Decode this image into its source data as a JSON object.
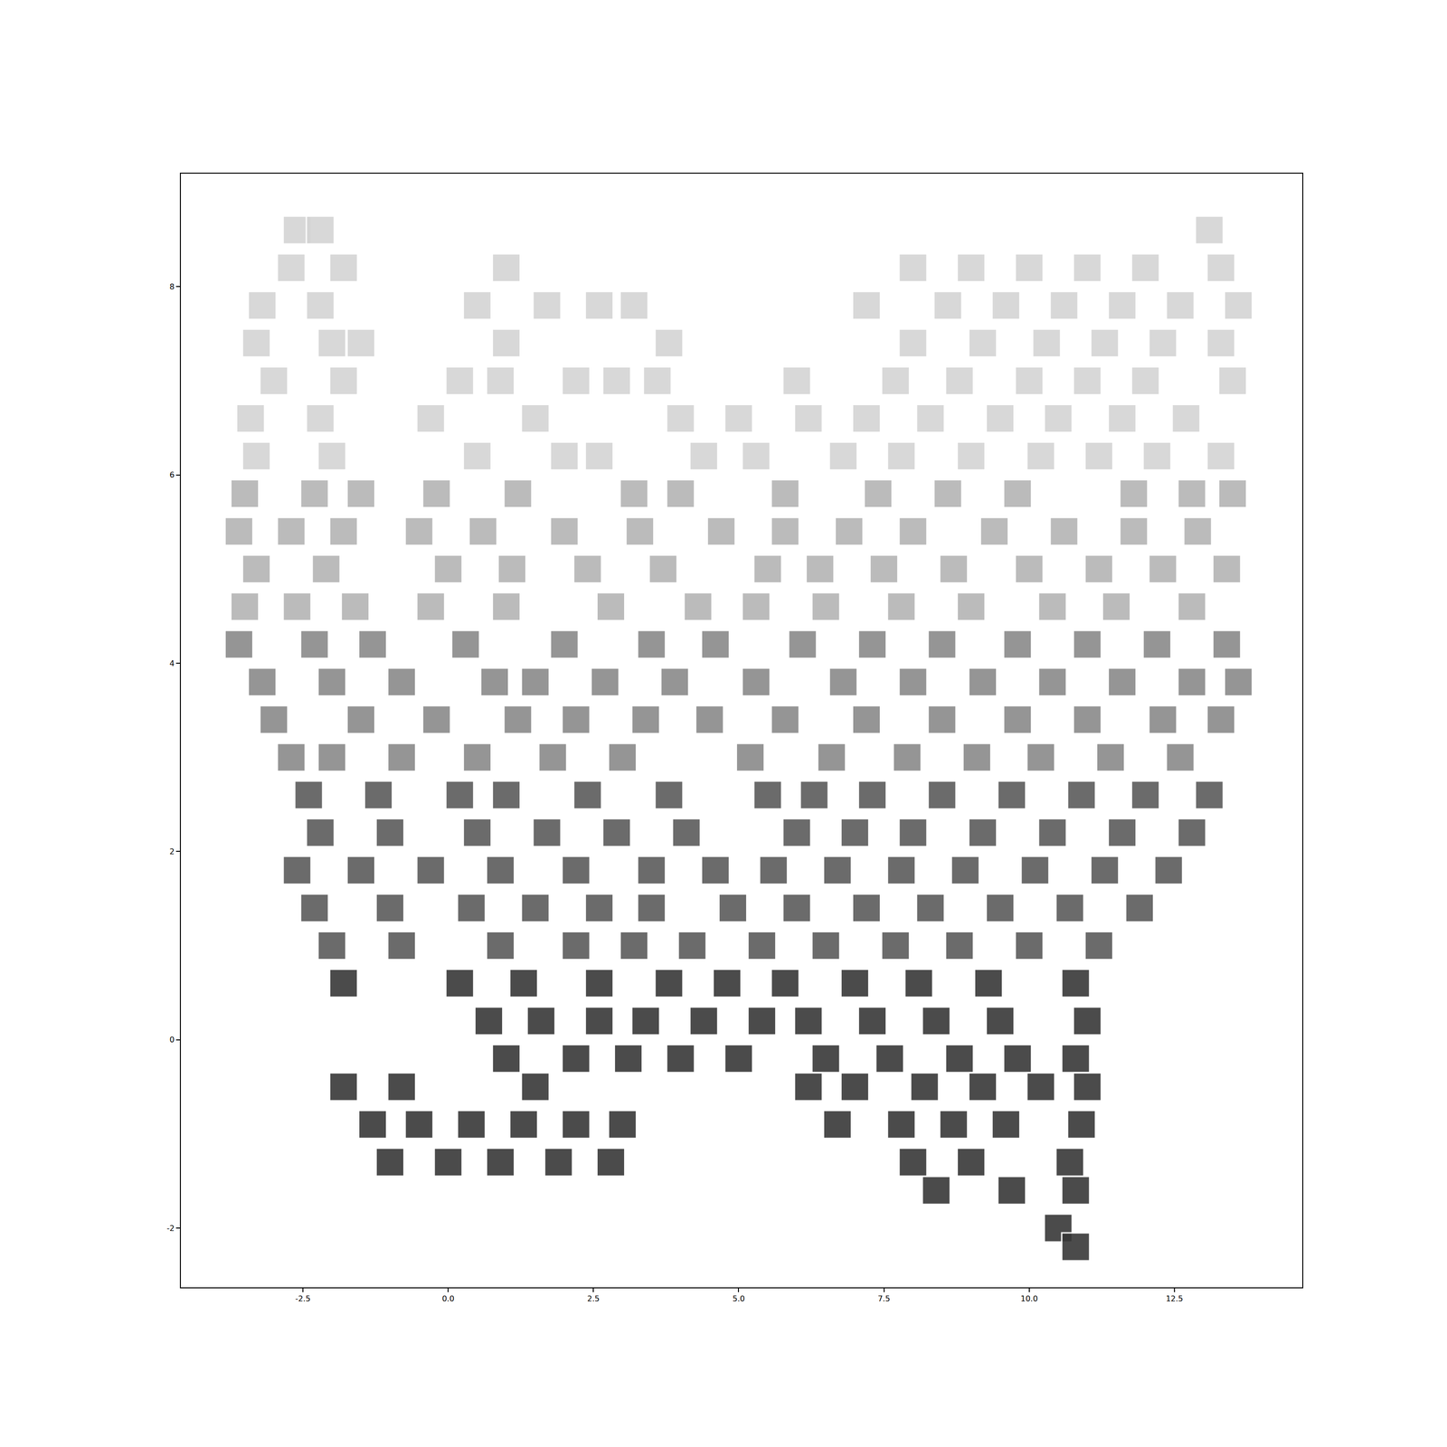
{
  "chart_data": {
    "type": "scatter",
    "marker": "square",
    "grid": false,
    "xlim": [
      -4.6,
      14.7
    ],
    "ylim": [
      -2.63,
      9.2
    ],
    "xticks": [
      -2.5,
      {
        "value": 0,
        "label": "0.0"
      },
      2.5,
      {
        "value": 5,
        "label": "5.0"
      },
      7.5,
      {
        "value": 10,
        "label": "10.0"
      },
      12.5
    ],
    "yticks": [
      -2,
      0,
      2,
      4,
      6,
      8
    ],
    "x": [
      -2.6,
      -2.2,
      13.1,
      -2.7,
      -1.8,
      1.0,
      8.0,
      9.0,
      10.0,
      11.0,
      12.0,
      13.3,
      -3.2,
      -2.2,
      0.5,
      1.7,
      2.6,
      3.2,
      7.2,
      8.6,
      9.6,
      10.6,
      11.6,
      12.6,
      13.6,
      -3.3,
      -2.0,
      -1.5,
      1.0,
      3.8,
      8.0,
      9.2,
      10.3,
      11.3,
      12.3,
      13.3,
      -3.0,
      -1.8,
      0.2,
      0.9,
      2.2,
      2.9,
      3.6,
      6.0,
      7.7,
      8.8,
      10.0,
      11.0,
      12.0,
      13.5,
      -3.4,
      -2.2,
      -0.3,
      1.5,
      4.0,
      5.0,
      6.2,
      7.2,
      8.3,
      9.5,
      10.5,
      11.6,
      12.7,
      -3.3,
      -2.0,
      0.5,
      2.0,
      2.6,
      4.4,
      5.3,
      6.8,
      7.8,
      9.0,
      10.2,
      11.2,
      12.2,
      13.3,
      -3.5,
      -2.3,
      -1.5,
      -0.2,
      1.2,
      3.2,
      4.0,
      5.8,
      7.4,
      8.6,
      9.8,
      11.8,
      12.8,
      13.5,
      -3.6,
      -2.7,
      -1.8,
      -0.5,
      0.6,
      2.0,
      3.3,
      4.7,
      5.8,
      6.9,
      8.0,
      9.4,
      10.6,
      11.8,
      12.9,
      -3.3,
      -2.1,
      0.0,
      1.1,
      2.4,
      3.7,
      5.5,
      6.4,
      7.5,
      8.7,
      10.0,
      11.2,
      12.3,
      13.4,
      -3.5,
      -2.6,
      -1.6,
      -0.3,
      1.0,
      2.8,
      4.3,
      5.3,
      6.5,
      7.8,
      9.0,
      10.4,
      11.5,
      12.8,
      -3.6,
      -2.3,
      -1.3,
      0.3,
      2.0,
      3.5,
      4.6,
      6.1,
      7.3,
      8.5,
      9.8,
      11.0,
      12.2,
      13.4,
      -3.2,
      -2.0,
      -0.8,
      0.8,
      1.5,
      2.7,
      3.9,
      5.3,
      6.8,
      8.0,
      9.2,
      10.4,
      11.6,
      12.8,
      13.6,
      -3.0,
      -1.5,
      -0.2,
      1.2,
      2.2,
      3.4,
      4.5,
      5.8,
      7.2,
      8.5,
      9.8,
      11.0,
      12.3,
      13.3,
      -2.7,
      -2.0,
      -0.8,
      0.5,
      1.8,
      3.0,
      5.2,
      6.6,
      7.9,
      9.1,
      10.2,
      11.4,
      12.6,
      -2.4,
      -1.2,
      0.2,
      1.0,
      2.4,
      3.8,
      5.5,
      6.3,
      7.3,
      8.5,
      9.7,
      10.9,
      12.0,
      13.1,
      -2.2,
      -1.0,
      0.5,
      1.7,
      2.9,
      4.1,
      6.0,
      7.0,
      8.0,
      9.2,
      10.4,
      11.6,
      12.8,
      -2.6,
      -1.5,
      -0.3,
      0.9,
      2.2,
      3.5,
      4.6,
      5.6,
      6.7,
      7.8,
      8.9,
      10.1,
      11.3,
      12.4,
      -2.3,
      -1.0,
      0.4,
      1.5,
      2.6,
      3.5,
      4.9,
      6.0,
      7.2,
      8.3,
      9.5,
      10.7,
      11.9,
      -2.0,
      -0.8,
      0.9,
      2.2,
      3.2,
      4.2,
      5.4,
      6.5,
      7.7,
      8.8,
      10.0,
      11.2,
      -1.8,
      0.2,
      1.3,
      2.6,
      3.8,
      4.8,
      5.8,
      7.0,
      8.1,
      9.3,
      10.8,
      0.7,
      1.6,
      2.6,
      3.4,
      4.4,
      5.4,
      6.2,
      7.3,
      8.4,
      9.5,
      11.0,
      1.0,
      2.2,
      3.1,
      4.0,
      5.0,
      6.5,
      7.6,
      8.8,
      9.8,
      10.8,
      -1.8,
      -0.8,
      1.5,
      6.2,
      7.0,
      8.2,
      9.2,
      10.2,
      11.0,
      -1.3,
      -0.5,
      0.4,
      1.3,
      2.2,
      3.0,
      6.7,
      7.8,
      8.7,
      9.6,
      10.9,
      -1.0,
      0.0,
      0.9,
      1.9,
      2.8,
      8.0,
      9.0,
      10.7,
      8.4,
      9.7,
      10.8,
      10.5,
      10.8
    ],
    "y": [
      8.6,
      8.6,
      8.6,
      8.2,
      8.2,
      8.2,
      8.2,
      8.2,
      8.2,
      8.2,
      8.2,
      8.2,
      7.8,
      7.8,
      7.8,
      7.8,
      7.8,
      7.8,
      7.8,
      7.8,
      7.8,
      7.8,
      7.8,
      7.8,
      7.8,
      7.4,
      7.4,
      7.4,
      7.4,
      7.4,
      7.4,
      7.4,
      7.4,
      7.4,
      7.4,
      7.4,
      7.0,
      7.0,
      7.0,
      7.0,
      7.0,
      7.0,
      7.0,
      7.0,
      7.0,
      7.0,
      7.0,
      7.0,
      7.0,
      7.0,
      6.6,
      6.6,
      6.6,
      6.6,
      6.6,
      6.6,
      6.6,
      6.6,
      6.6,
      6.6,
      6.6,
      6.6,
      6.6,
      6.2,
      6.2,
      6.2,
      6.2,
      6.2,
      6.2,
      6.2,
      6.2,
      6.2,
      6.2,
      6.2,
      6.2,
      6.2,
      6.2,
      5.8,
      5.8,
      5.8,
      5.8,
      5.8,
      5.8,
      5.8,
      5.8,
      5.8,
      5.8,
      5.8,
      5.8,
      5.8,
      5.8,
      5.4,
      5.4,
      5.4,
      5.4,
      5.4,
      5.4,
      5.4,
      5.4,
      5.4,
      5.4,
      5.4,
      5.4,
      5.4,
      5.4,
      5.4,
      5.0,
      5.0,
      5.0,
      5.0,
      5.0,
      5.0,
      5.0,
      5.0,
      5.0,
      5.0,
      5.0,
      5.0,
      5.0,
      5.0,
      4.6,
      4.6,
      4.6,
      4.6,
      4.6,
      4.6,
      4.6,
      4.6,
      4.6,
      4.6,
      4.6,
      4.6,
      4.6,
      4.6,
      4.2,
      4.2,
      4.2,
      4.2,
      4.2,
      4.2,
      4.2,
      4.2,
      4.2,
      4.2,
      4.2,
      4.2,
      4.2,
      4.2,
      3.8,
      3.8,
      3.8,
      3.8,
      3.8,
      3.8,
      3.8,
      3.8,
      3.8,
      3.8,
      3.8,
      3.8,
      3.8,
      3.8,
      3.8,
      3.4,
      3.4,
      3.4,
      3.4,
      3.4,
      3.4,
      3.4,
      3.4,
      3.4,
      3.4,
      3.4,
      3.4,
      3.4,
      3.4,
      3.0,
      3.0,
      3.0,
      3.0,
      3.0,
      3.0,
      3.0,
      3.0,
      3.0,
      3.0,
      3.0,
      3.0,
      3.0,
      2.6,
      2.6,
      2.6,
      2.6,
      2.6,
      2.6,
      2.6,
      2.6,
      2.6,
      2.6,
      2.6,
      2.6,
      2.6,
      2.6,
      2.2,
      2.2,
      2.2,
      2.2,
      2.2,
      2.2,
      2.2,
      2.2,
      2.2,
      2.2,
      2.2,
      2.2,
      2.2,
      1.8,
      1.8,
      1.8,
      1.8,
      1.8,
      1.8,
      1.8,
      1.8,
      1.8,
      1.8,
      1.8,
      1.8,
      1.8,
      1.8,
      1.4,
      1.4,
      1.4,
      1.4,
      1.4,
      1.4,
      1.4,
      1.4,
      1.4,
      1.4,
      1.4,
      1.4,
      1.4,
      1.0,
      1.0,
      1.0,
      1.0,
      1.0,
      1.0,
      1.0,
      1.0,
      1.0,
      1.0,
      1.0,
      1.0,
      0.6,
      0.6,
      0.6,
      0.6,
      0.6,
      0.6,
      0.6,
      0.6,
      0.6,
      0.6,
      0.6,
      0.2,
      0.2,
      0.2,
      0.2,
      0.2,
      0.2,
      0.2,
      0.2,
      0.2,
      0.2,
      0.2,
      -0.2,
      -0.2,
      -0.2,
      -0.2,
      -0.2,
      -0.2,
      -0.2,
      -0.2,
      -0.2,
      -0.2,
      -0.5,
      -0.5,
      -0.5,
      -0.5,
      -0.5,
      -0.5,
      -0.5,
      -0.5,
      -0.5,
      -0.9,
      -0.9,
      -0.9,
      -0.9,
      -0.9,
      -0.9,
      -0.9,
      -0.9,
      -0.9,
      -0.9,
      -0.9,
      -1.3,
      -1.3,
      -1.3,
      -1.3,
      -1.3,
      -1.3,
      -1.3,
      -1.3,
      -1.6,
      -1.6,
      -1.6,
      -2.0,
      -2.2
    ],
    "colors": [
      "#d4d4d4",
      "#d4d4d4",
      "#d4d4d4",
      "#d4d4d4",
      "#d4d4d4",
      "#d4d4d4",
      "#d4d4d4",
      "#d4d4d4",
      "#d4d4d4",
      "#d4d4d4",
      "#d4d4d4",
      "#d4d4d4",
      "#d4d4d4",
      "#d4d4d4",
      "#d4d4d4",
      "#d4d4d4",
      "#d4d4d4",
      "#d4d4d4",
      "#d4d4d4",
      "#d4d4d4",
      "#d4d4d4",
      "#d4d4d4",
      "#d4d4d4",
      "#d4d4d4",
      "#d4d4d4",
      "#d4d4d4",
      "#d4d4d4",
      "#d4d4d4",
      "#d4d4d4",
      "#d4d4d4",
      "#d4d4d4",
      "#d4d4d4",
      "#d4d4d4",
      "#d4d4d4",
      "#d4d4d4",
      "#d4d4d4",
      "#d4d4d4",
      "#d4d4d4",
      "#d4d4d4",
      "#d4d4d4",
      "#d4d4d4",
      "#d4d4d4",
      "#d4d4d4",
      "#d4d4d4",
      "#d4d4d4",
      "#d4d4d4",
      "#d4d4d4",
      "#d4d4d4",
      "#d4d4d4",
      "#d4d4d4",
      "#d4d4d4",
      "#d4d4d4",
      "#d4d4d4",
      "#d4d4d4",
      "#d4d4d4",
      "#d4d4d4",
      "#d4d4d4",
      "#d4d4d4",
      "#d4d4d4",
      "#d4d4d4",
      "#d4d4d4",
      "#d4d4d4",
      "#d4d4d4",
      "#d4d4d4",
      "#d4d4d4",
      "#d4d4d4",
      "#d4d4d4",
      "#d4d4d4",
      "#d4d4d4",
      "#d4d4d4",
      "#d4d4d4",
      "#d4d4d4",
      "#d4d4d4",
      "#d4d4d4",
      "#d4d4d4",
      "#d4d4d4",
      "#d4d4d4",
      "#b4b4b4",
      "#b4b4b4",
      "#b4b4b4",
      "#b4b4b4",
      "#b4b4b4",
      "#b4b4b4",
      "#b4b4b4",
      "#b4b4b4",
      "#b4b4b4",
      "#b4b4b4",
      "#b4b4b4",
      "#b4b4b4",
      "#b4b4b4",
      "#b4b4b4",
      "#b4b4b4",
      "#b4b4b4",
      "#b4b4b4",
      "#b4b4b4",
      "#b4b4b4",
      "#b4b4b4",
      "#b4b4b4",
      "#b4b4b4",
      "#b4b4b4",
      "#b4b4b4",
      "#b4b4b4",
      "#b4b4b4",
      "#b4b4b4",
      "#b4b4b4",
      "#b4b4b4",
      "#b4b4b4",
      "#b4b4b4",
      "#b4b4b4",
      "#b4b4b4",
      "#b4b4b4",
      "#b4b4b4",
      "#b4b4b4",
      "#b4b4b4",
      "#b4b4b4",
      "#b4b4b4",
      "#b4b4b4",
      "#b4b4b4",
      "#b4b4b4",
      "#b4b4b4",
      "#b4b4b4",
      "#b4b4b4",
      "#b4b4b4",
      "#b4b4b4",
      "#b4b4b4",
      "#b4b4b4",
      "#b4b4b4",
      "#b4b4b4",
      "#b4b4b4",
      "#b4b4b4",
      "#b4b4b4",
      "#b4b4b4",
      "#b4b4b4",
      "#b4b4b4",
      "#8a8a8a",
      "#8a8a8a",
      "#8a8a8a",
      "#8a8a8a",
      "#8a8a8a",
      "#8a8a8a",
      "#8a8a8a",
      "#8a8a8a",
      "#8a8a8a",
      "#8a8a8a",
      "#8a8a8a",
      "#8a8a8a",
      "#8a8a8a",
      "#8a8a8a",
      "#8a8a8a",
      "#8a8a8a",
      "#8a8a8a",
      "#8a8a8a",
      "#8a8a8a",
      "#8a8a8a",
      "#8a8a8a",
      "#8a8a8a",
      "#8a8a8a",
      "#8a8a8a",
      "#8a8a8a",
      "#8a8a8a",
      "#8a8a8a",
      "#8a8a8a",
      "#8a8a8a",
      "#8a8a8a",
      "#8a8a8a",
      "#8a8a8a",
      "#8a8a8a",
      "#8a8a8a",
      "#8a8a8a",
      "#8a8a8a",
      "#8a8a8a",
      "#8a8a8a",
      "#8a8a8a",
      "#8a8a8a",
      "#8a8a8a",
      "#8a8a8a",
      "#8a8a8a",
      "#8a8a8a",
      "#8a8a8a",
      "#8a8a8a",
      "#8a8a8a",
      "#8a8a8a",
      "#8a8a8a",
      "#8a8a8a",
      "#8a8a8a",
      "#8a8a8a",
      "#8a8a8a",
      "#8a8a8a",
      "#8a8a8a",
      "#8a8a8a",
      "#5c5c5c",
      "#5c5c5c",
      "#5c5c5c",
      "#5c5c5c",
      "#5c5c5c",
      "#5c5c5c",
      "#5c5c5c",
      "#5c5c5c",
      "#5c5c5c",
      "#5c5c5c",
      "#5c5c5c",
      "#5c5c5c",
      "#5c5c5c",
      "#5c5c5c",
      "#5c5c5c",
      "#5c5c5c",
      "#5c5c5c",
      "#5c5c5c",
      "#5c5c5c",
      "#5c5c5c",
      "#5c5c5c",
      "#5c5c5c",
      "#5c5c5c",
      "#5c5c5c",
      "#5c5c5c",
      "#5c5c5c",
      "#5c5c5c",
      "#5c5c5c",
      "#5c5c5c",
      "#5c5c5c",
      "#5c5c5c",
      "#5c5c5c",
      "#5c5c5c",
      "#5c5c5c",
      "#5c5c5c",
      "#5c5c5c",
      "#5c5c5c",
      "#5c5c5c",
      "#5c5c5c",
      "#5c5c5c",
      "#5c5c5c",
      "#5c5c5c",
      "#5c5c5c",
      "#5c5c5c",
      "#5c5c5c",
      "#5c5c5c",
      "#5c5c5c",
      "#5c5c5c",
      "#5c5c5c",
      "#5c5c5c",
      "#5c5c5c",
      "#5c5c5c",
      "#5c5c5c",
      "#5c5c5c",
      "#5c5c5c",
      "#5c5c5c",
      "#5c5c5c",
      "#5c5c5c",
      "#5c5c5c",
      "#5c5c5c",
      "#5c5c5c",
      "#5c5c5c",
      "#5c5c5c",
      "#5c5c5c",
      "#5c5c5c",
      "#5c5c5c",
      "#383838",
      "#383838",
      "#383838",
      "#383838",
      "#383838",
      "#383838",
      "#383838",
      "#383838",
      "#383838",
      "#383838",
      "#383838",
      "#383838",
      "#383838",
      "#383838",
      "#383838",
      "#383838",
      "#383838",
      "#383838",
      "#383838",
      "#383838",
      "#383838",
      "#383838",
      "#383838",
      "#383838",
      "#383838",
      "#383838",
      "#383838",
      "#383838",
      "#383838",
      "#383838",
      "#383838",
      "#383838",
      "#383838",
      "#383838",
      "#383838",
      "#383838",
      "#383838",
      "#383838",
      "#383838",
      "#383838",
      "#383838",
      "#383838",
      "#383838",
      "#383838",
      "#383838",
      "#383838",
      "#383838",
      "#383838",
      "#383838",
      "#383838",
      "#383838",
      "#383838",
      "#383838",
      "#383838",
      "#383838",
      "#383838",
      "#383838",
      "#383838",
      "#383838",
      "#383838",
      "#383838",
      "#383838",
      "#383838",
      "#383838",
      "#383838"
    ]
  }
}
